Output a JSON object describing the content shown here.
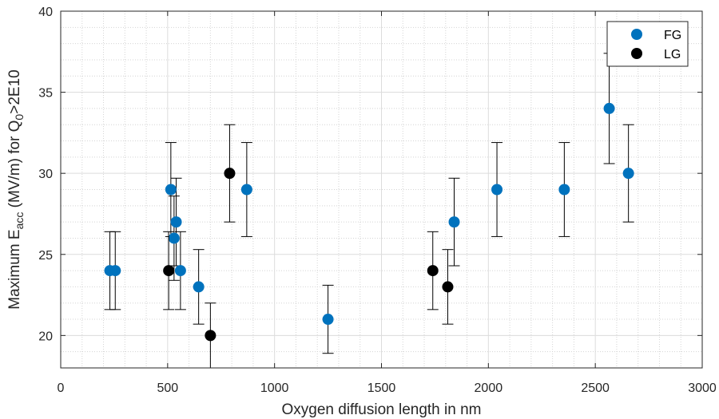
{
  "chart_data": {
    "type": "scatter",
    "title": "",
    "xlabel": "Oxygen diffusion length in nm",
    "ylabel": {
      "prefix": "Maximum E",
      "sub1": "acc",
      "mid": " (MV/m) for Q",
      "sub2": "0",
      "suffix": ">2E10"
    },
    "xlim": [
      0,
      3000
    ],
    "ylim": [
      18,
      40
    ],
    "xticks": [
      0,
      500,
      1000,
      1500,
      2000,
      2500,
      3000
    ],
    "yticks": [
      20,
      25,
      30,
      35,
      40
    ],
    "grid": true,
    "minor_grid": true,
    "legend_position": "top-right",
    "series": [
      {
        "name": "FG",
        "color": "#0072BD",
        "points": [
          {
            "x": 230,
            "y": 24,
            "low": 21.6,
            "high": 26.4
          },
          {
            "x": 255,
            "y": 24,
            "low": 21.6,
            "high": 26.4
          },
          {
            "x": 515,
            "y": 29,
            "low": 26.1,
            "high": 31.9
          },
          {
            "x": 530,
            "y": 26,
            "low": 23.4,
            "high": 28.6
          },
          {
            "x": 540,
            "y": 27,
            "low": 24.3,
            "high": 29.7
          },
          {
            "x": 560,
            "y": 24,
            "low": 21.6,
            "high": 26.4
          },
          {
            "x": 645,
            "y": 23,
            "low": 20.7,
            "high": 25.3
          },
          {
            "x": 870,
            "y": 29,
            "low": 26.1,
            "high": 31.9
          },
          {
            "x": 1250,
            "y": 21,
            "low": 18.9,
            "high": 23.1
          },
          {
            "x": 1840,
            "y": 27,
            "low": 24.3,
            "high": 29.7
          },
          {
            "x": 2040,
            "y": 29,
            "low": 26.1,
            "high": 31.9
          },
          {
            "x": 2355,
            "y": 29,
            "low": 26.1,
            "high": 31.9
          },
          {
            "x": 2565,
            "y": 34,
            "low": 30.6,
            "high": 37.4
          },
          {
            "x": 2655,
            "y": 30,
            "low": 27,
            "high": 33
          }
        ]
      },
      {
        "name": "LG",
        "color": "#000000",
        "points": [
          {
            "x": 505,
            "y": 24,
            "low": 21.6,
            "high": 26.4
          },
          {
            "x": 700,
            "y": 20,
            "low": 18,
            "high": 22
          },
          {
            "x": 790,
            "y": 30,
            "low": 27,
            "high": 33
          },
          {
            "x": 1740,
            "y": 24,
            "low": 21.6,
            "high": 26.4
          },
          {
            "x": 1810,
            "y": 23,
            "low": 20.7,
            "high": 25.3
          }
        ]
      }
    ]
  }
}
